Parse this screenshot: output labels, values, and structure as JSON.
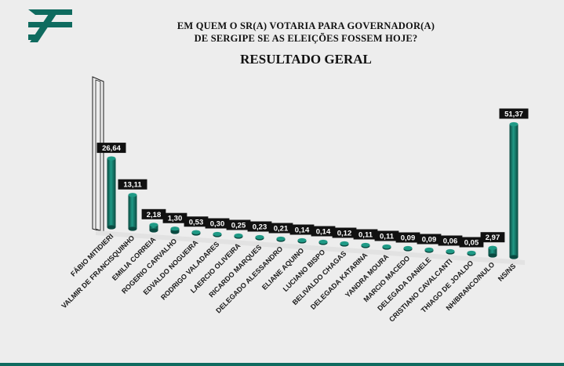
{
  "header": {
    "title_line1": "EM QUEM O SR(A) VOTARIA PARA GOVERNADOR(A)",
    "title_line2": "DE SERGIPE SE AS ELEIÇÕES FOSSEM HOJE?",
    "subtitle": "RESULTADO GERAL"
  },
  "colors": {
    "bar": "#0f6b5f",
    "bar_dark": "#0a4a41",
    "bar_light": "#1f9a86",
    "label_bg": "#111111",
    "label_text": "#ffffff",
    "logo": "#0f6b5f"
  },
  "chart_data": {
    "type": "bar",
    "title": "EM QUEM O SR(A) VOTARIA PARA GOVERNADOR(A) DE SERGIPE SE AS ELEIÇÕES FOSSEM HOJE?",
    "subtitle": "RESULTADO GERAL",
    "categories": [
      "FÁBIO MITIDIERI",
      "VALMIR DE FRANCISQUINHO",
      "EMILIA CORREIA",
      "ROGERIO CARVALHO",
      "EDVALDO NOGUEIRA",
      "RODRIGO VALADARES",
      "LAERCIO OLIVEIRA",
      "RICARDO MARQUES",
      "DELEGADO ALESSANDRO",
      "ELIANE AQUINO",
      "LUCIANO BISPO",
      "BELIVALDO CHAGAS",
      "DELEGADA KATARINA",
      "YANDRA MOURA",
      "MARCIO MACEDO",
      "DELEGADA DANIELE",
      "CRISTIANO CAVALCANTI",
      "THIAGO DE JOALDO",
      "NH/BRANCO/NULO",
      "NS/NS"
    ],
    "values": [
      26.64,
      13.11,
      2.18,
      1.3,
      0.53,
      0.3,
      0.25,
      0.23,
      0.21,
      0.14,
      0.14,
      0.12,
      0.11,
      0.11,
      0.09,
      0.09,
      0.06,
      0.05,
      2.97,
      51.37
    ],
    "value_labels": [
      "26,64",
      "13,11",
      "2,18",
      "1,30",
      "0,53",
      "0,30",
      "0,25",
      "0,23",
      "0,21",
      "0,14",
      "0,14",
      "0,12",
      "0,11",
      "0,11",
      "0,09",
      "0,09",
      "0,06",
      "0,05",
      "2,97",
      "51,37"
    ],
    "highlighted": "FÁBIO MITIDIERI",
    "ylim": [
      0,
      60
    ],
    "xlabel": "",
    "ylabel": "",
    "grid": false,
    "legend": false
  }
}
